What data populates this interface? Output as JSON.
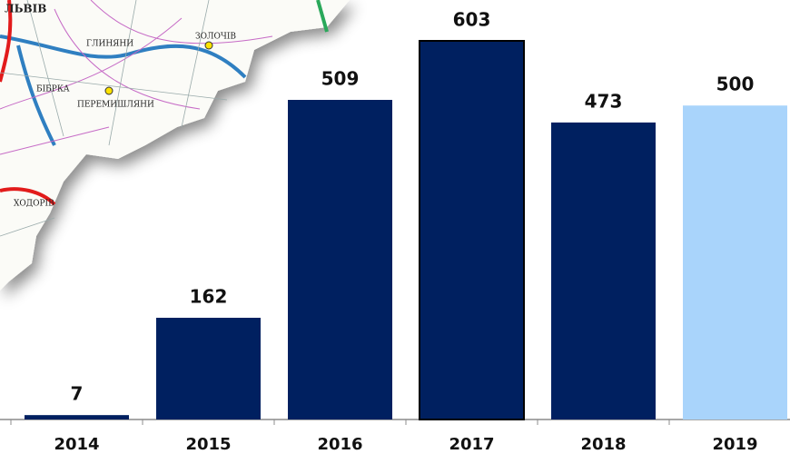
{
  "chart_data": {
    "type": "bar",
    "categories": [
      "2014",
      "2015",
      "2016",
      "2017",
      "2018",
      "2019"
    ],
    "values": [
      7,
      162,
      509,
      603,
      473,
      500
    ],
    "colors": [
      "#002060",
      "#002060",
      "#002060",
      "#002060",
      "#002060",
      "#a9d4fb"
    ],
    "outlined": [
      false,
      false,
      false,
      true,
      false,
      false
    ]
  },
  "map": {
    "labels": [
      "ЛЬВІВ",
      "ГЛИНЯНИ",
      "ЗОЛОЧІВ",
      "БІБРКА",
      "ПЕРЕМИШЛЯНИ",
      "ХОДОРІВ"
    ]
  }
}
